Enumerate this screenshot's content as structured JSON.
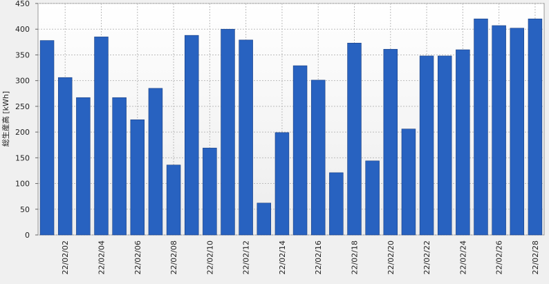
{
  "chart_data": {
    "type": "bar",
    "y_label": "総生産高 [kWh]",
    "categories": [
      null,
      "22/02/02",
      null,
      "22/02/04",
      null,
      "22/02/06",
      null,
      "22/02/08",
      null,
      "22/02/10",
      null,
      "22/02/12",
      null,
      "22/02/14",
      null,
      "22/02/16",
      null,
      "22/02/18",
      null,
      "22/02/20",
      null,
      "22/02/22",
      null,
      "22/02/24",
      null,
      "22/02/26",
      null,
      "22/02/28"
    ],
    "values": [
      378,
      306,
      267,
      385,
      267,
      224,
      285,
      136,
      388,
      169,
      400,
      379,
      62,
      199,
      329,
      301,
      121,
      373,
      144,
      361,
      206,
      348,
      348,
      360,
      420,
      407,
      402,
      420
    ],
    "color": "#2862c0",
    "ylim": [
      0,
      450
    ],
    "yticks": [
      0,
      50,
      100,
      150,
      200,
      250,
      300,
      350,
      400,
      450
    ],
    "grid": true
  }
}
